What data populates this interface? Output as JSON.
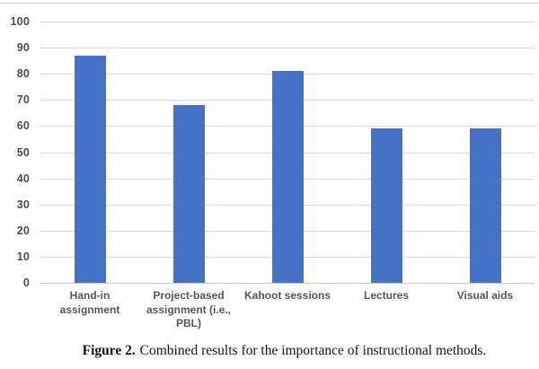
{
  "figure": {
    "caption_label": "Figure 2.",
    "caption_text": " Combined results for the importance of instructional methods."
  },
  "chart_data": {
    "type": "bar",
    "title": "",
    "xlabel": "",
    "ylabel": "",
    "categories": [
      "Hand-in assignment",
      "Project-based assignment (i.e., PBL)",
      "Kahoot sessions",
      "Lectures",
      "Visual aids"
    ],
    "values": [
      87,
      68,
      81,
      59,
      59
    ],
    "ylim": [
      0,
      100
    ],
    "yticks": [
      0,
      10,
      20,
      30,
      40,
      50,
      60,
      70,
      80,
      90,
      100
    ],
    "grid": true,
    "legend": false,
    "bar_color": "#4472C4",
    "gridline_color": "#D9D9D9",
    "axis_line_color": "#C9C9C9",
    "ytick_label_color": "#4C4C4C",
    "xtick_label_color": "#575757"
  }
}
